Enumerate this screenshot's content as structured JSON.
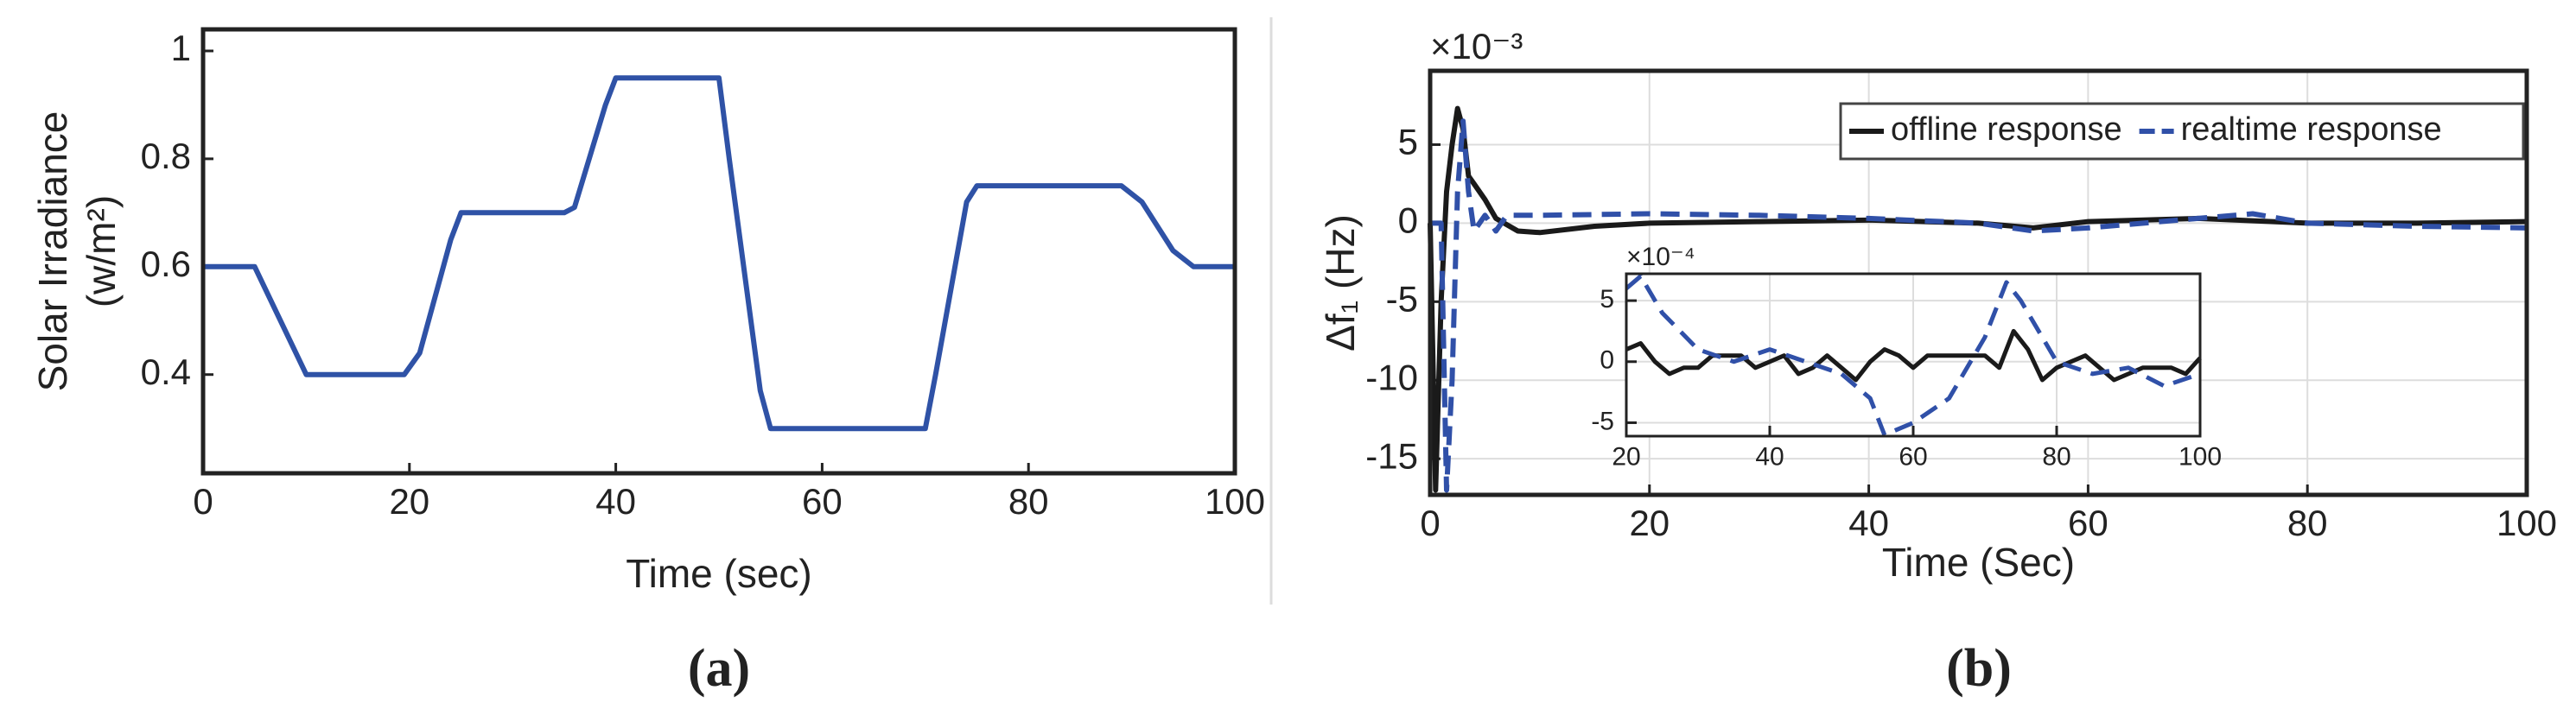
{
  "chart_data": [
    {
      "type": "line",
      "caption": "(a)",
      "ylabel": [
        "Solar Irradiance",
        "(w/m²)"
      ],
      "xlabel": "Time (sec)",
      "color": "#2f52a6",
      "grid": false,
      "xlim": [
        0,
        100
      ],
      "xticks": [
        0,
        20,
        40,
        60,
        80,
        100
      ],
      "ylim": [
        0.217,
        1.04
      ],
      "yticks": [
        0.4,
        0.6,
        0.8,
        1
      ],
      "x": [
        0,
        5,
        10,
        19.5,
        21,
        24,
        25,
        35,
        36,
        39,
        40,
        50,
        51,
        54,
        55,
        70,
        71,
        74,
        75,
        89,
        91,
        94,
        96,
        100
      ],
      "values": [
        0.6,
        0.6,
        0.4,
        0.4,
        0.44,
        0.65,
        0.7,
        0.7,
        0.71,
        0.9,
        0.95,
        0.95,
        0.8,
        0.37,
        0.3,
        0.3,
        0.4,
        0.72,
        0.75,
        0.75,
        0.72,
        0.63,
        0.6,
        0.6
      ]
    },
    {
      "type": "line",
      "caption": "(b)",
      "ylabel": "Δf₁ (Hz)",
      "xlabel": "Time (Sec)",
      "multiplier": "×10⁻³",
      "grid": true,
      "legend": "upper right",
      "xlim": [
        0,
        100
      ],
      "xticks": [
        0,
        20,
        40,
        60,
        80,
        100
      ],
      "ylim": [
        -17.3,
        9.7
      ],
      "yticks": [
        -15,
        -10,
        -5,
        0,
        5
      ],
      "series": [
        {
          "name": "offline response",
          "color": "#1a1a1a",
          "linestyle": "solid",
          "x": [
            0,
            0.5,
            1,
            1.5,
            2,
            2.5,
            3,
            3.5,
            4,
            5,
            6,
            8,
            10,
            15,
            20,
            30,
            40,
            50,
            55,
            60,
            70,
            80,
            90,
            100
          ],
          "values": [
            0,
            -17,
            -5,
            2,
            5,
            7.3,
            6,
            3,
            2.5,
            1.5,
            0.3,
            -0.5,
            -0.6,
            -0.2,
            0,
            0.1,
            0.2,
            0,
            -0.3,
            0.1,
            0.3,
            0,
            0,
            0.1
          ]
        },
        {
          "name": "realtime response",
          "color": "#3050a8",
          "linestyle": "dashed",
          "x": [
            0,
            1,
            1.5,
            2,
            2.5,
            3,
            3.5,
            4,
            5,
            6,
            7,
            10,
            20,
            30,
            40,
            50,
            55,
            60,
            70,
            75,
            80,
            90,
            100
          ],
          "values": [
            0,
            0,
            -17,
            -10,
            2,
            6.5,
            2,
            -0.5,
            0.5,
            -0.5,
            0.5,
            0.5,
            0.6,
            0.5,
            0.3,
            0,
            -0.5,
            -0.3,
            0.3,
            0.6,
            0,
            -0.2,
            -0.3
          ]
        }
      ]
    },
    {
      "type": "line",
      "multiplier": "×10⁻⁴",
      "grid": true,
      "xlim": [
        20,
        100
      ],
      "xticks": [
        20,
        40,
        60,
        80,
        100
      ],
      "ylim": [
        -6.1,
        7.2
      ],
      "yticks": [
        -5,
        0,
        5
      ],
      "series": [
        {
          "color": "#1a1a1a",
          "linestyle": "solid",
          "x": [
            20,
            22,
            24,
            26,
            28,
            30,
            32,
            36,
            38,
            40,
            42,
            44,
            46,
            48,
            50,
            52,
            54,
            56,
            58,
            60,
            62,
            66,
            70,
            72,
            74,
            76,
            78,
            80,
            84,
            88,
            92,
            96,
            98,
            100
          ],
          "values": [
            1,
            1.5,
            0,
            -1,
            -0.5,
            -0.5,
            0.5,
            0.5,
            -0.5,
            0,
            0.5,
            -1,
            -0.5,
            0.5,
            -0.5,
            -1.5,
            0,
            1,
            0.5,
            -0.5,
            0.5,
            0.5,
            0.5,
            -0.5,
            2.5,
            1,
            -1.5,
            -0.5,
            0.5,
            -1.5,
            -0.5,
            -0.5,
            -1,
            0.3
          ]
        },
        {
          "color": "#3050a8",
          "linestyle": "dashed",
          "x": [
            20,
            22,
            25,
            30,
            35,
            40,
            45,
            50,
            54,
            56,
            60,
            65,
            70,
            73,
            75,
            80,
            85,
            90,
            95,
            100
          ],
          "values": [
            6,
            7,
            4,
            1,
            0,
            1,
            0,
            -1,
            -3,
            -6,
            -5,
            -3,
            2,
            6.5,
            5,
            0,
            -1,
            -0.5,
            -2,
            -1
          ]
        }
      ]
    }
  ]
}
